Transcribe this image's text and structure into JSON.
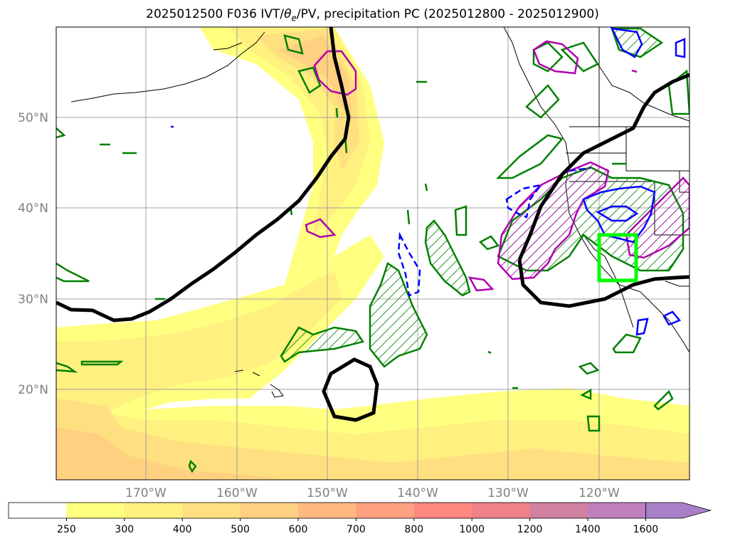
{
  "title": {
    "prefix": "2025012500 F036 IVT/",
    "theta": "θ",
    "theta_sub": "e",
    "suffix": "/PV, precipitation PC (2025012800 - 2025012900)"
  },
  "map": {
    "lat_labels": [
      "50°N",
      "40°N",
      "30°N",
      "20°N"
    ],
    "lon_labels": [
      "170°W",
      "160°W",
      "150°W",
      "140°W",
      "130°W",
      "120°W"
    ],
    "colors": {
      "pv_line": "#000000",
      "theta_e": "#008000",
      "ivt_pc_positive": "#b000b0",
      "precip_pc": "#0000ff",
      "highlight_box": "#00ff00",
      "coastline": "#000000",
      "gridline": "#a0a0a0"
    }
  },
  "colorbar": {
    "levels": [
      "250",
      "300",
      "400",
      "500",
      "600",
      "700",
      "800",
      "1000",
      "1200",
      "1400",
      "1600"
    ],
    "colors": [
      "#ffffff",
      "#ffff80",
      "#fff080",
      "#ffe080",
      "#ffd080",
      "#ffb880",
      "#ffa080",
      "#ff8880",
      "#f08088",
      "#d080a0",
      "#c080c0",
      "#a880c8"
    ],
    "extend": "max"
  }
}
